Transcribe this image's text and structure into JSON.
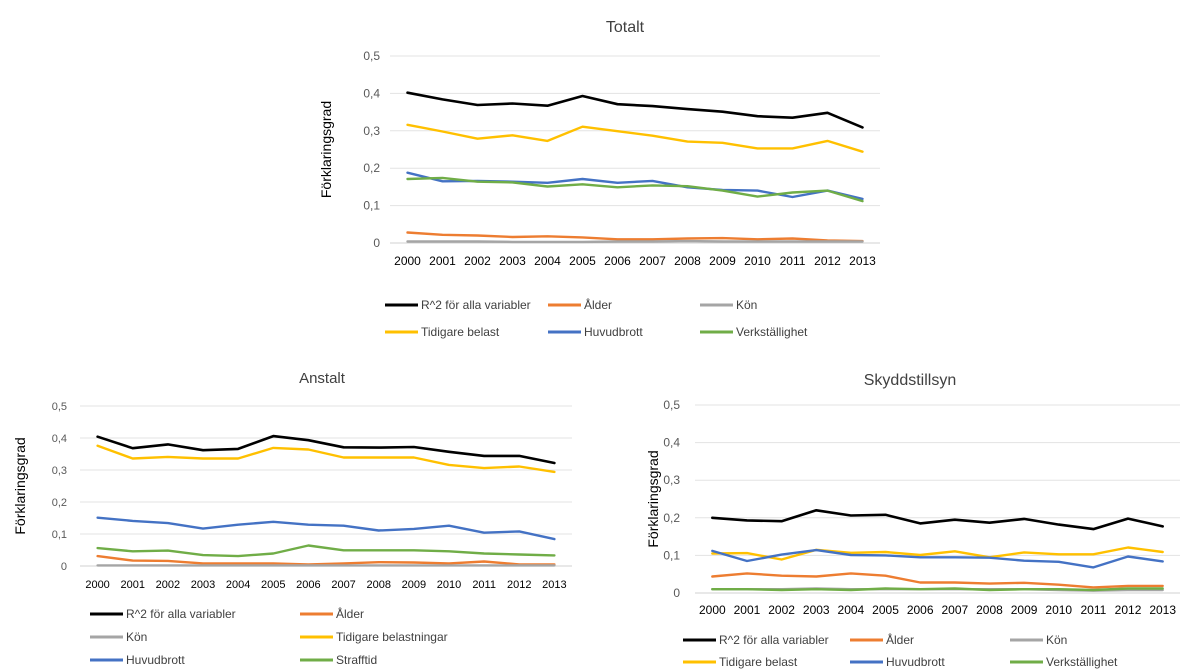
{
  "chart_data": [
    {
      "type": "line",
      "title": "Totalt",
      "ylabel": "Förklaringsgrad",
      "xlabel": "",
      "ylim": [
        0,
        0.5
      ],
      "yticks": [
        "0",
        "0,1",
        "0,2",
        "0,3",
        "0,4",
        "0,5"
      ],
      "grid": true,
      "legend": "bottom",
      "categories": [
        "2000",
        "2001",
        "2002",
        "2003",
        "2004",
        "2005",
        "2006",
        "2007",
        "2008",
        "2009",
        "2010",
        "2011",
        "2012",
        "2013"
      ],
      "series": [
        {
          "name": "R^2 för alla variabler",
          "color": "#000000",
          "values": [
            0.402,
            0.384,
            0.369,
            0.373,
            0.367,
            0.393,
            0.371,
            0.366,
            0.358,
            0.351,
            0.339,
            0.335,
            0.348,
            0.309
          ]
        },
        {
          "name": "Ålder",
          "color": "#ed7d31",
          "values": [
            0.028,
            0.022,
            0.02,
            0.016,
            0.018,
            0.015,
            0.01,
            0.01,
            0.012,
            0.013,
            0.01,
            0.012,
            0.007,
            0.005
          ]
        },
        {
          "name": "Kön",
          "color": "#a5a5a5",
          "values": [
            0.004,
            0.004,
            0.004,
            0.003,
            0.003,
            0.003,
            0.004,
            0.004,
            0.005,
            0.004,
            0.004,
            0.004,
            0.004,
            0.004
          ]
        },
        {
          "name": "Tidigare belast",
          "color": "#ffc000",
          "values": [
            0.316,
            0.298,
            0.279,
            0.288,
            0.273,
            0.311,
            0.299,
            0.287,
            0.271,
            0.268,
            0.253,
            0.253,
            0.273,
            0.244
          ]
        },
        {
          "name": "Huvudbrott",
          "color": "#4472c4",
          "values": [
            0.188,
            0.165,
            0.166,
            0.164,
            0.161,
            0.171,
            0.161,
            0.166,
            0.149,
            0.142,
            0.14,
            0.123,
            0.14,
            0.118
          ]
        },
        {
          "name": "Verkställighet",
          "color": "#70ad47",
          "values": [
            0.171,
            0.174,
            0.164,
            0.162,
            0.151,
            0.157,
            0.149,
            0.154,
            0.152,
            0.14,
            0.124,
            0.135,
            0.14,
            0.112
          ]
        }
      ]
    },
    {
      "type": "line",
      "title": "Anstalt",
      "ylabel": "Förklaringsgrad",
      "xlabel": "",
      "ylim": [
        0,
        0.5
      ],
      "yticks": [
        "0",
        "0,1",
        "0,2",
        "0,3",
        "0,4",
        "0,5"
      ],
      "grid": true,
      "legend": "bottom",
      "categories": [
        "2000",
        "2001",
        "2002",
        "2003",
        "2004",
        "2005",
        "2006",
        "2007",
        "2008",
        "2009",
        "2010",
        "2011",
        "2012",
        "2013"
      ],
      "series": [
        {
          "name": "R^2 för alla variabler",
          "color": "#000000",
          "values": [
            0.404,
            0.368,
            0.38,
            0.362,
            0.366,
            0.406,
            0.393,
            0.371,
            0.37,
            0.372,
            0.357,
            0.344,
            0.344,
            0.322
          ]
        },
        {
          "name": "Ålder",
          "color": "#ed7d31",
          "values": [
            0.031,
            0.017,
            0.016,
            0.008,
            0.008,
            0.008,
            0.005,
            0.008,
            0.012,
            0.011,
            0.008,
            0.014,
            0.005,
            0.005
          ]
        },
        {
          "name": "Kön",
          "color": "#a5a5a5",
          "values": [
            0.002,
            0.002,
            0.002,
            0.002,
            0.002,
            0.002,
            0.002,
            0.002,
            0.002,
            0.002,
            0.002,
            0.002,
            0.002,
            0.002
          ]
        },
        {
          "name": "Tidigare belastningar",
          "color": "#ffc000",
          "values": [
            0.376,
            0.336,
            0.341,
            0.336,
            0.336,
            0.369,
            0.364,
            0.339,
            0.339,
            0.339,
            0.316,
            0.306,
            0.311,
            0.294
          ]
        },
        {
          "name": "Huvudbrott",
          "color": "#4472c4",
          "values": [
            0.151,
            0.141,
            0.134,
            0.117,
            0.129,
            0.138,
            0.129,
            0.126,
            0.111,
            0.116,
            0.126,
            0.104,
            0.108,
            0.084
          ]
        },
        {
          "name": "Strafftid",
          "color": "#70ad47",
          "values": [
            0.056,
            0.046,
            0.048,
            0.034,
            0.031,
            0.039,
            0.064,
            0.049,
            0.049,
            0.049,
            0.046,
            0.039,
            0.036,
            0.033
          ]
        }
      ]
    },
    {
      "type": "line",
      "title": "Skyddstillsyn",
      "ylabel": "Förklaringsgrad",
      "xlabel": "",
      "ylim": [
        0,
        0.5
      ],
      "yticks": [
        "0",
        "0,1",
        "0,2",
        "0,3",
        "0,4",
        "0,5"
      ],
      "grid": true,
      "legend": "bottom",
      "categories": [
        "2000",
        "2001",
        "2002",
        "2003",
        "2004",
        "2005",
        "2006",
        "2007",
        "2008",
        "2009",
        "2010",
        "2011",
        "2012",
        "2013"
      ],
      "series": [
        {
          "name": "R^2 för alla variabler",
          "color": "#000000",
          "values": [
            0.2,
            0.193,
            0.191,
            0.22,
            0.206,
            0.208,
            0.185,
            0.195,
            0.187,
            0.197,
            0.182,
            0.17,
            0.198,
            0.177
          ]
        },
        {
          "name": "Ålder",
          "color": "#ed7d31",
          "values": [
            0.044,
            0.052,
            0.046,
            0.044,
            0.052,
            0.046,
            0.028,
            0.028,
            0.025,
            0.027,
            0.022,
            0.015,
            0.019,
            0.019
          ]
        },
        {
          "name": "Kön",
          "color": "#a5a5a5",
          "values": [
            0.01,
            0.01,
            0.01,
            0.012,
            0.01,
            0.01,
            0.01,
            0.01,
            0.01,
            0.01,
            0.008,
            0.006,
            0.008,
            0.008
          ]
        },
        {
          "name": "Tidigare belast",
          "color": "#ffc000",
          "values": [
            0.105,
            0.106,
            0.089,
            0.115,
            0.107,
            0.109,
            0.101,
            0.111,
            0.095,
            0.108,
            0.103,
            0.103,
            0.121,
            0.109
          ]
        },
        {
          "name": "Huvudbrott",
          "color": "#4472c4",
          "values": [
            0.112,
            0.085,
            0.102,
            0.114,
            0.101,
            0.1,
            0.095,
            0.095,
            0.094,
            0.086,
            0.083,
            0.068,
            0.097,
            0.084
          ]
        },
        {
          "name": "Verkställighet",
          "color": "#70ad47",
          "values": [
            0.01,
            0.01,
            0.008,
            0.01,
            0.008,
            0.012,
            0.01,
            0.012,
            0.008,
            0.01,
            0.01,
            0.008,
            0.012,
            0.012
          ]
        }
      ]
    }
  ]
}
